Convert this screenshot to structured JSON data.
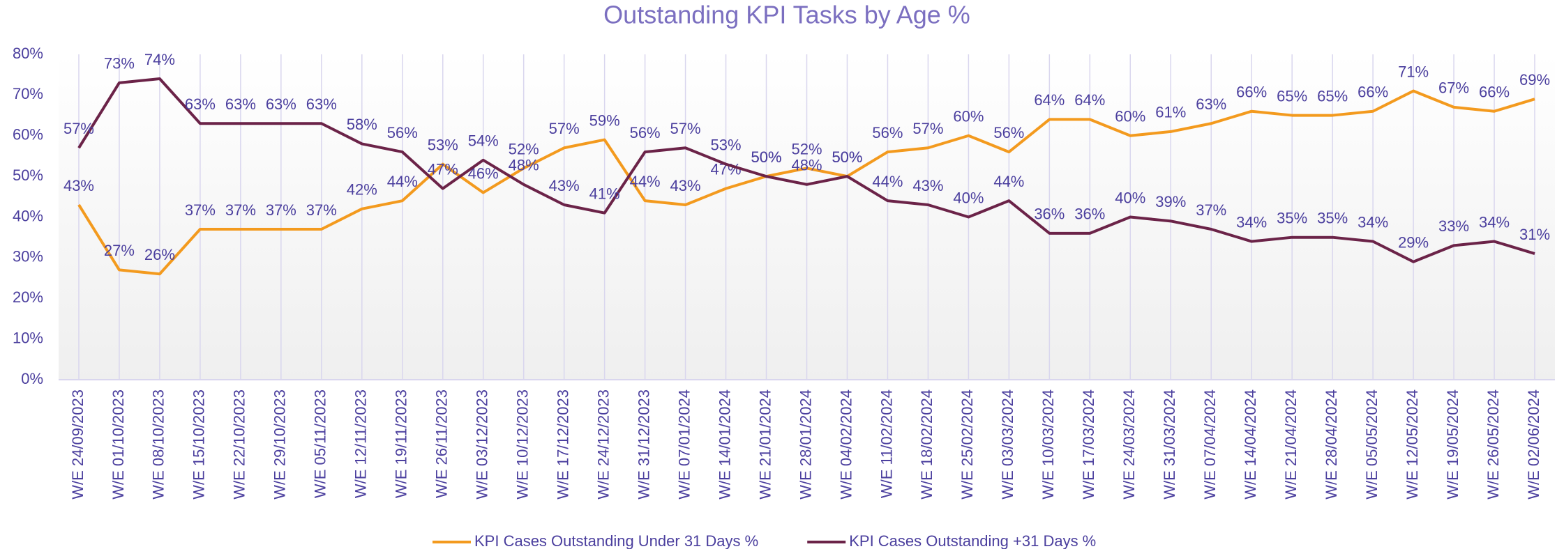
{
  "chart_data": {
    "type": "line",
    "title": "Outstanding KPI Tasks by Age %",
    "categories": [
      "W/E 24/09/2023",
      "W/E 01/10/2023",
      "W/E 08/10/2023",
      "W/E 15/10/2023",
      "W/E 22/10/2023",
      "W/E 29/10/2023",
      "W/E 05/11/2023",
      "W/E 12/11/2023",
      "W/E 19/11/2023",
      "W/E 26/11/2023",
      "W/E 03/12/2023",
      "W/E 10/12/2023",
      "W/E 17/12/2023",
      "W/E 24/12/2023",
      "W/E 31/12/2023",
      "W/E 07/01/2024",
      "W/E 14/01/2024",
      "W/E 21/01/2024",
      "W/E 28/01/2024",
      "W/E 04/02/2024",
      "W/E 11/02/2024",
      "W/E 18/02/2024",
      "W/E 25/02/2024",
      "W/E 03/03/2024",
      "W/E 10/03/2024",
      "W/E 17/03/2024",
      "W/E 24/03/2024",
      "W/E 31/03/2024",
      "W/E 07/04/2024",
      "W/E 14/04/2024",
      "W/E 21/04/2024",
      "W/E 28/04/2024",
      "W/E 05/05/2024",
      "W/E 12/05/2024",
      "W/E 19/05/2024",
      "W/E 26/05/2024",
      "W/E 02/06/2024"
    ],
    "series": [
      {
        "name": "KPI Cases Outstanding Under 31 Days %",
        "color": "#f39a1e",
        "values": [
          43,
          27,
          26,
          37,
          37,
          37,
          37,
          42,
          44,
          53,
          46,
          52,
          57,
          59,
          44,
          43,
          47,
          50,
          52,
          50,
          56,
          57,
          60,
          56,
          64,
          64,
          60,
          61,
          63,
          66,
          65,
          65,
          66,
          71,
          67,
          66,
          69
        ],
        "value_labels": [
          "43%",
          "27%",
          "26%",
          "37%",
          "37%",
          "37%",
          "37%",
          "42%",
          "44%",
          "53%",
          "46%",
          "52%",
          "57%",
          "59%",
          "44%",
          "43%",
          "47%",
          "50%",
          "52%",
          "50%",
          "56%",
          "57%",
          "60%",
          "56%",
          "64%",
          "64%",
          "60%",
          "61%",
          "63%",
          "66%",
          "65%",
          "65%",
          "66%",
          "71%",
          "67%",
          "66%",
          "69%"
        ]
      },
      {
        "name": "KPI Cases Outstanding +31 Days %",
        "color": "#6b2348",
        "values": [
          57,
          73,
          74,
          63,
          63,
          63,
          63,
          58,
          56,
          47,
          54,
          48,
          43,
          41,
          56,
          57,
          53,
          50,
          48,
          50,
          44,
          43,
          40,
          44,
          36,
          36,
          40,
          39,
          37,
          34,
          35,
          35,
          34,
          29,
          33,
          34,
          31
        ],
        "value_labels": [
          "57%",
          "73%",
          "74%",
          "63%",
          "63%",
          "63%",
          "63%",
          "58%",
          "56%",
          "47%",
          "54%",
          "48%",
          "43%",
          "41%",
          "56%",
          "57%",
          "53%",
          "50%",
          "48%",
          "50%",
          "44%",
          "43%",
          "40%",
          "44%",
          "36%",
          "36%",
          "40%",
          "39%",
          "37%",
          "34%",
          "35%",
          "35%",
          "34%",
          "29%",
          "33%",
          "34%",
          "31%"
        ]
      }
    ],
    "ylim": [
      0,
      80
    ],
    "yticks": [
      {
        "value": 0,
        "label": "0%"
      },
      {
        "value": 10,
        "label": "10%"
      },
      {
        "value": 20,
        "label": "20%"
      },
      {
        "value": 30,
        "label": "30%"
      },
      {
        "value": 40,
        "label": "40%"
      },
      {
        "value": 50,
        "label": "50%"
      },
      {
        "value": 60,
        "label": "60%"
      },
      {
        "value": 70,
        "label": "70%"
      },
      {
        "value": 80,
        "label": "80%"
      }
    ],
    "grid": true,
    "legend": "bottom"
  }
}
